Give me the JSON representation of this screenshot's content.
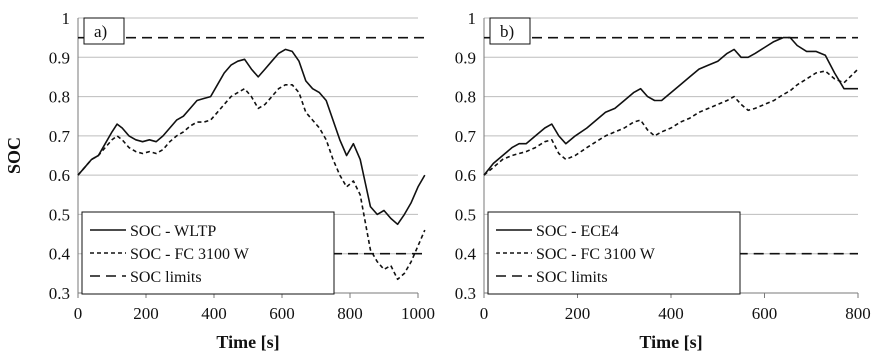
{
  "chart_data": [
    {
      "type": "line",
      "panel_label": "a)",
      "xlabel": "Time [s]",
      "ylabel": "SOC",
      "xlim": [
        0,
        1000
      ],
      "ylim": [
        0.3,
        1.0
      ],
      "xticks": [
        0,
        200,
        400,
        600,
        800,
        1000
      ],
      "xtick_labels": [
        "0",
        "200",
        "400",
        "600",
        "800",
        "1000"
      ],
      "yticks": [
        0.3,
        0.4,
        0.5,
        0.6,
        0.7,
        0.8,
        0.9,
        1.0
      ],
      "ytick_labels": [
        "0.3",
        "0.4",
        "0.5",
        "0.6",
        "0.7",
        "0.8",
        "0.9",
        "1"
      ],
      "grid": "horizontal",
      "legend_position": "bottom-left",
      "series": [
        {
          "name": "SOC - WLTP",
          "style": "solid",
          "x": [
            0,
            20,
            40,
            60,
            80,
            100,
            115,
            130,
            150,
            170,
            190,
            210,
            230,
            250,
            270,
            290,
            310,
            330,
            350,
            370,
            390,
            410,
            430,
            450,
            470,
            490,
            510,
            530,
            550,
            570,
            590,
            610,
            630,
            650,
            670,
            690,
            710,
            730,
            750,
            770,
            790,
            810,
            830,
            845,
            860,
            880,
            900,
            920,
            940,
            960,
            980,
            1000,
            1020
          ],
          "y": [
            0.6,
            0.62,
            0.64,
            0.65,
            0.68,
            0.71,
            0.73,
            0.72,
            0.7,
            0.69,
            0.685,
            0.69,
            0.685,
            0.7,
            0.72,
            0.74,
            0.75,
            0.77,
            0.79,
            0.795,
            0.8,
            0.83,
            0.86,
            0.88,
            0.89,
            0.895,
            0.87,
            0.85,
            0.87,
            0.89,
            0.91,
            0.92,
            0.915,
            0.89,
            0.84,
            0.82,
            0.81,
            0.79,
            0.74,
            0.69,
            0.65,
            0.68,
            0.64,
            0.58,
            0.52,
            0.5,
            0.51,
            0.49,
            0.475,
            0.5,
            0.53,
            0.57,
            0.6
          ]
        },
        {
          "name": "SOC - FC 3100 W",
          "style": "short-dash",
          "x": [
            0,
            20,
            40,
            60,
            80,
            100,
            115,
            130,
            150,
            170,
            190,
            210,
            230,
            250,
            270,
            290,
            310,
            330,
            350,
            370,
            390,
            410,
            430,
            450,
            470,
            490,
            510,
            530,
            550,
            570,
            590,
            610,
            630,
            650,
            670,
            690,
            710,
            730,
            750,
            770,
            790,
            810,
            830,
            845,
            860,
            880,
            900,
            920,
            940,
            960,
            980,
            1000,
            1020
          ],
          "y": [
            0.6,
            0.62,
            0.64,
            0.65,
            0.67,
            0.69,
            0.7,
            0.69,
            0.67,
            0.66,
            0.655,
            0.66,
            0.655,
            0.665,
            0.685,
            0.7,
            0.71,
            0.725,
            0.735,
            0.735,
            0.74,
            0.76,
            0.78,
            0.8,
            0.81,
            0.82,
            0.8,
            0.77,
            0.78,
            0.8,
            0.82,
            0.83,
            0.83,
            0.81,
            0.76,
            0.74,
            0.72,
            0.69,
            0.64,
            0.6,
            0.57,
            0.585,
            0.55,
            0.48,
            0.41,
            0.38,
            0.36,
            0.37,
            0.335,
            0.35,
            0.38,
            0.42,
            0.46
          ]
        },
        {
          "name": "SOC limits",
          "style": "long-dash",
          "segments": [
            {
              "x": [
                0,
                1020
              ],
              "y": [
                0.95,
                0.95
              ]
            },
            {
              "x": [
                700,
                1020
              ],
              "y": [
                0.4,
                0.4
              ]
            }
          ]
        }
      ]
    },
    {
      "type": "line",
      "panel_label": "b)",
      "xlabel": "Time [s]",
      "ylabel": "",
      "xlim": [
        0,
        800
      ],
      "ylim": [
        0.3,
        1.0
      ],
      "xticks": [
        0,
        200,
        400,
        600,
        800
      ],
      "xtick_labels": [
        "0",
        "200",
        "400",
        "600",
        "800"
      ],
      "yticks": [
        0.3,
        0.4,
        0.5,
        0.6,
        0.7,
        0.8,
        0.9,
        1.0
      ],
      "ytick_labels": [
        "0.3",
        "0.4",
        "0.5",
        "0.6",
        "0.7",
        "0.8",
        "0.9",
        "1"
      ],
      "grid": "horizontal",
      "legend_position": "bottom-left",
      "series": [
        {
          "name": "SOC - ECE4",
          "style": "solid",
          "x": [
            0,
            20,
            40,
            60,
            75,
            90,
            110,
            130,
            145,
            160,
            175,
            195,
            220,
            240,
            260,
            280,
            300,
            320,
            335,
            350,
            365,
            380,
            400,
            420,
            440,
            460,
            480,
            500,
            520,
            535,
            550,
            565,
            580,
            600,
            620,
            640,
            655,
            670,
            690,
            710,
            730,
            750,
            770,
            800
          ],
          "y": [
            0.6,
            0.63,
            0.65,
            0.67,
            0.68,
            0.68,
            0.7,
            0.72,
            0.73,
            0.7,
            0.68,
            0.7,
            0.72,
            0.74,
            0.76,
            0.77,
            0.79,
            0.81,
            0.82,
            0.8,
            0.79,
            0.79,
            0.81,
            0.83,
            0.85,
            0.87,
            0.88,
            0.89,
            0.91,
            0.92,
            0.9,
            0.9,
            0.91,
            0.925,
            0.94,
            0.95,
            0.95,
            0.93,
            0.915,
            0.915,
            0.905,
            0.86,
            0.82,
            0.82
          ]
        },
        {
          "name": "SOC - FC 3100 W",
          "style": "short-dash",
          "x": [
            0,
            20,
            40,
            60,
            75,
            90,
            110,
            130,
            145,
            160,
            175,
            195,
            220,
            240,
            260,
            280,
            300,
            320,
            335,
            350,
            365,
            380,
            400,
            420,
            440,
            460,
            480,
            500,
            520,
            535,
            550,
            565,
            580,
            600,
            620,
            640,
            655,
            670,
            690,
            710,
            730,
            750,
            770,
            800
          ],
          "y": [
            0.6,
            0.62,
            0.64,
            0.65,
            0.655,
            0.66,
            0.67,
            0.685,
            0.69,
            0.655,
            0.64,
            0.65,
            0.67,
            0.685,
            0.7,
            0.71,
            0.72,
            0.735,
            0.74,
            0.715,
            0.7,
            0.71,
            0.72,
            0.735,
            0.745,
            0.76,
            0.77,
            0.78,
            0.79,
            0.8,
            0.78,
            0.765,
            0.77,
            0.78,
            0.79,
            0.805,
            0.815,
            0.83,
            0.845,
            0.86,
            0.865,
            0.845,
            0.835,
            0.87
          ]
        },
        {
          "name": "SOC limits",
          "style": "long-dash",
          "segments": [
            {
              "x": [
                0,
                800
              ],
              "y": [
                0.95,
                0.95
              ]
            },
            {
              "x": [
                440,
                800
              ],
              "y": [
                0.4,
                0.4
              ]
            }
          ]
        }
      ]
    }
  ]
}
